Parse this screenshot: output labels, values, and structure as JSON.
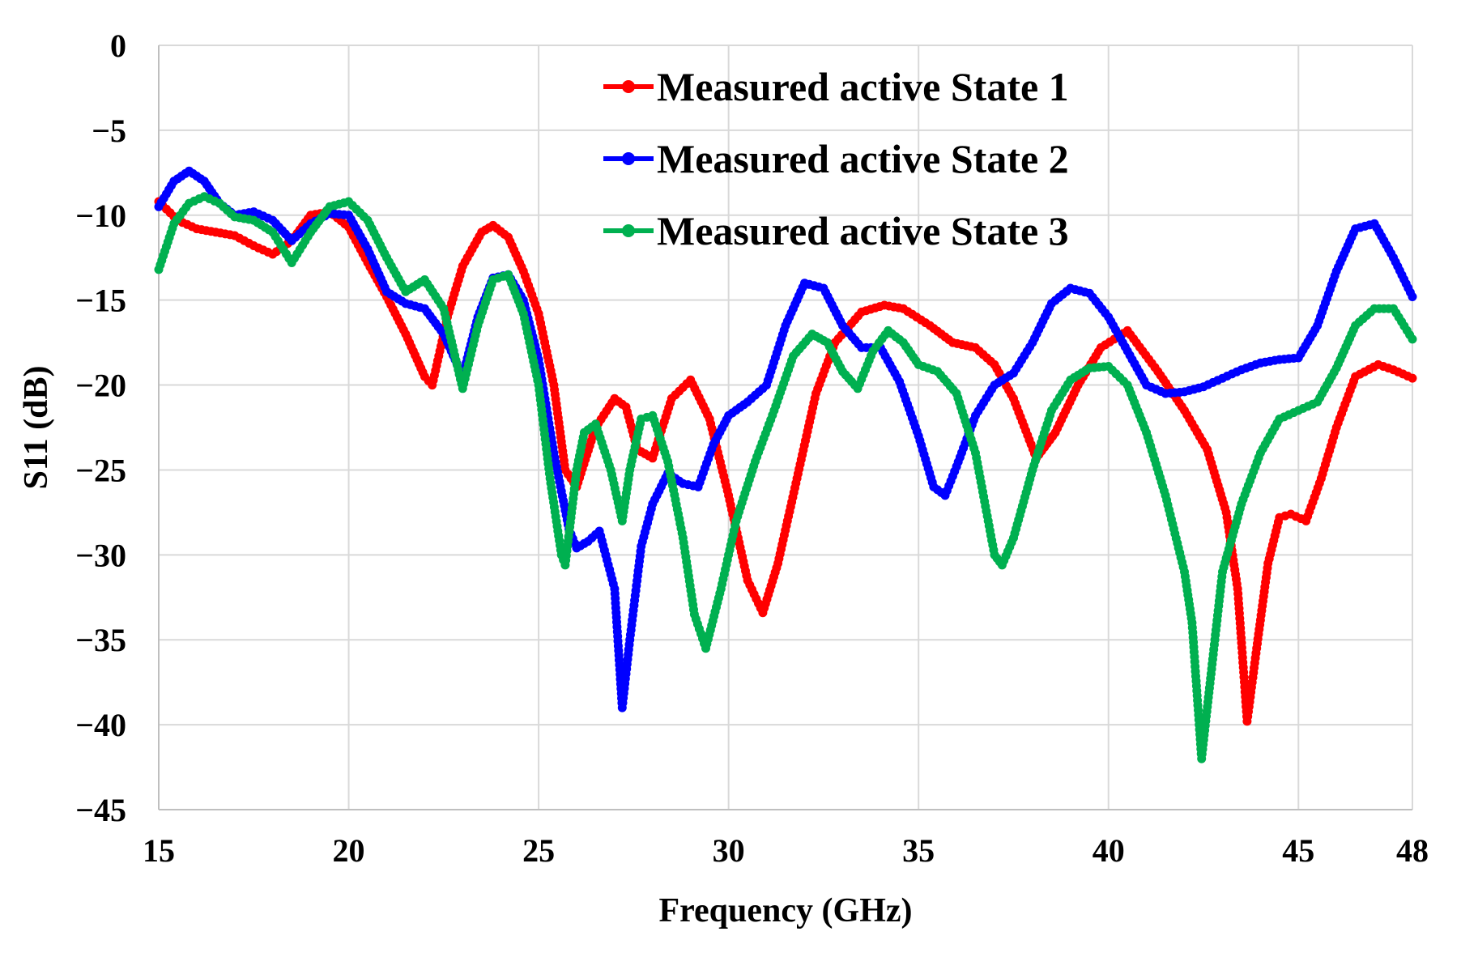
{
  "chart_data": {
    "type": "line",
    "title": "",
    "xlabel": "Frequency (GHz)",
    "ylabel": "S11 (dB)",
    "xlim": [
      15,
      48
    ],
    "ylim": [
      -45,
      0
    ],
    "grid": true,
    "legend_position": "top-right",
    "xticks": [
      15,
      20,
      25,
      30,
      35,
      40,
      45,
      48
    ],
    "yticks": [
      0,
      -5,
      -10,
      -15,
      -20,
      -25,
      -30,
      -35,
      -40,
      -45
    ],
    "series": [
      {
        "name": "Measured active State 1",
        "color": "#ff0000",
        "x": [
          15,
          15.5,
          16,
          16.5,
          17,
          17.5,
          18,
          18.5,
          19,
          19.5,
          20,
          20.5,
          21,
          21.5,
          22,
          22.2,
          22.6,
          23,
          23.5,
          23.8,
          24.2,
          24.6,
          25,
          25.4,
          25.7,
          26,
          26.5,
          27,
          27.3,
          27.6,
          28,
          28.5,
          29,
          29.5,
          30,
          30.5,
          30.9,
          31.3,
          31.8,
          32.3,
          32.8,
          33.5,
          34.1,
          34.6,
          35.3,
          35.9,
          36.5,
          37,
          37.5,
          38.1,
          38.6,
          39.2,
          39.8,
          40.5,
          41.3,
          42,
          42.6,
          43.1,
          43.4,
          43.65,
          43.9,
          44.2,
          44.5,
          44.8,
          45.2,
          45.6,
          46,
          46.5,
          47.1,
          47.5,
          48
        ],
        "values": [
          -9.2,
          -10.3,
          -10.8,
          -11,
          -11.2,
          -11.8,
          -12.3,
          -11.5,
          -10,
          -9.8,
          -10.7,
          -12.8,
          -14.8,
          -17,
          -19.5,
          -20,
          -16,
          -13,
          -11,
          -10.6,
          -11.3,
          -13.3,
          -15.8,
          -20,
          -25,
          -26,
          -22.5,
          -20.8,
          -21.3,
          -23.8,
          -24.3,
          -20.8,
          -19.7,
          -22,
          -26.5,
          -31.5,
          -33.4,
          -30.5,
          -25.5,
          -20.5,
          -17.5,
          -15.7,
          -15.3,
          -15.5,
          -16.5,
          -17.5,
          -17.8,
          -18.8,
          -20.8,
          -24.3,
          -22.8,
          -20,
          -17.8,
          -16.8,
          -19.2,
          -21.5,
          -23.8,
          -27.5,
          -32,
          -39.8,
          -35.5,
          -30.5,
          -27.8,
          -27.6,
          -28,
          -25.5,
          -22.5,
          -19.5,
          -18.8,
          -19.1,
          -19.6
        ]
      },
      {
        "name": "Measured active State 2",
        "color": "#0000ff",
        "x": [
          15,
          15.4,
          15.8,
          16.2,
          16.6,
          17,
          17.5,
          18,
          18.5,
          19,
          19.5,
          20,
          20.5,
          21,
          21.5,
          22,
          22.5,
          23,
          23.4,
          23.8,
          24.2,
          24.6,
          25,
          25.4,
          25.8,
          26,
          26.3,
          26.6,
          27,
          27.2,
          27.4,
          27.7,
          28,
          28.4,
          28.8,
          29.2,
          29.6,
          30,
          30.5,
          31,
          31.5,
          32,
          32.5,
          33,
          33.5,
          34,
          34.5,
          35,
          35.4,
          35.7,
          36,
          36.5,
          37,
          37.5,
          38,
          38.5,
          39,
          39.5,
          40,
          40.5,
          41,
          41.5,
          42,
          42.5,
          43,
          43.5,
          44,
          44.5,
          45,
          45.5,
          46,
          46.5,
          47,
          47.5,
          48
        ],
        "values": [
          -9.5,
          -8,
          -7.4,
          -8,
          -9.3,
          -10,
          -9.8,
          -10.3,
          -11.5,
          -10.5,
          -9.9,
          -10,
          -12,
          -14.5,
          -15.2,
          -15.5,
          -17,
          -19.5,
          -16,
          -13.7,
          -13.5,
          -15,
          -18.5,
          -24,
          -28.5,
          -29.6,
          -29.2,
          -28.6,
          -32,
          -39,
          -35,
          -29.5,
          -27,
          -25.2,
          -25.8,
          -26,
          -23.5,
          -21.8,
          -21,
          -20,
          -16.5,
          -14,
          -14.3,
          -16.5,
          -17.8,
          -17.8,
          -19.8,
          -23,
          -26,
          -26.5,
          -24.8,
          -21.8,
          -20,
          -19.3,
          -17.5,
          -15.2,
          -14.3,
          -14.6,
          -16,
          -18,
          -20,
          -20.5,
          -20.4,
          -20.1,
          -19.6,
          -19.1,
          -18.7,
          -18.5,
          -18.4,
          -16.5,
          -13.3,
          -10.8,
          -10.5,
          -12.5,
          -14.8
        ]
      },
      {
        "name": "Measured active State 3",
        "color": "#00b050",
        "x": [
          15,
          15.4,
          15.8,
          16.2,
          16.6,
          17,
          17.5,
          18,
          18.5,
          19,
          19.5,
          20,
          20.5,
          21,
          21.5,
          22,
          22.5,
          23,
          23.4,
          23.8,
          24.2,
          24.6,
          25,
          25.3,
          25.6,
          25.7,
          26,
          26.2,
          26.5,
          26.9,
          27.2,
          27.4,
          27.7,
          28,
          28.4,
          28.8,
          29.1,
          29.4,
          29.8,
          30.2,
          30.7,
          31.2,
          31.7,
          32.2,
          32.6,
          33,
          33.4,
          33.8,
          34.2,
          34.6,
          35,
          35.5,
          36,
          36.5,
          37,
          37.2,
          37.5,
          38,
          38.5,
          39,
          39.5,
          40,
          40.5,
          41,
          41.5,
          42,
          42.2,
          42.45,
          42.7,
          43,
          43.5,
          44,
          44.5,
          45,
          45.5,
          46,
          46.5,
          47,
          47.5,
          48
        ],
        "values": [
          -13.2,
          -10.5,
          -9.3,
          -8.9,
          -9.3,
          -10.1,
          -10.3,
          -11,
          -12.8,
          -11,
          -9.5,
          -9.2,
          -10.3,
          -12.5,
          -14.5,
          -13.8,
          -15.5,
          -20.2,
          -16.5,
          -13.8,
          -13.5,
          -15.8,
          -20,
          -25.5,
          -30,
          -30.6,
          -25,
          -22.8,
          -22.3,
          -25,
          -28,
          -25,
          -22,
          -21.8,
          -24.5,
          -29,
          -33.5,
          -35.5,
          -32,
          -28,
          -24.5,
          -21.5,
          -18.3,
          -17,
          -17.5,
          -19.2,
          -20.2,
          -18,
          -16.8,
          -17.5,
          -18.8,
          -19.2,
          -20.5,
          -24,
          -30,
          -30.6,
          -29,
          -25,
          -21.5,
          -19.7,
          -19,
          -18.9,
          -20,
          -22.8,
          -26.5,
          -31,
          -34,
          -42,
          -37,
          -31,
          -27,
          -24,
          -22,
          -21.5,
          -21,
          -19,
          -16.5,
          -15.5,
          -15.5,
          -17.3
        ]
      }
    ]
  }
}
